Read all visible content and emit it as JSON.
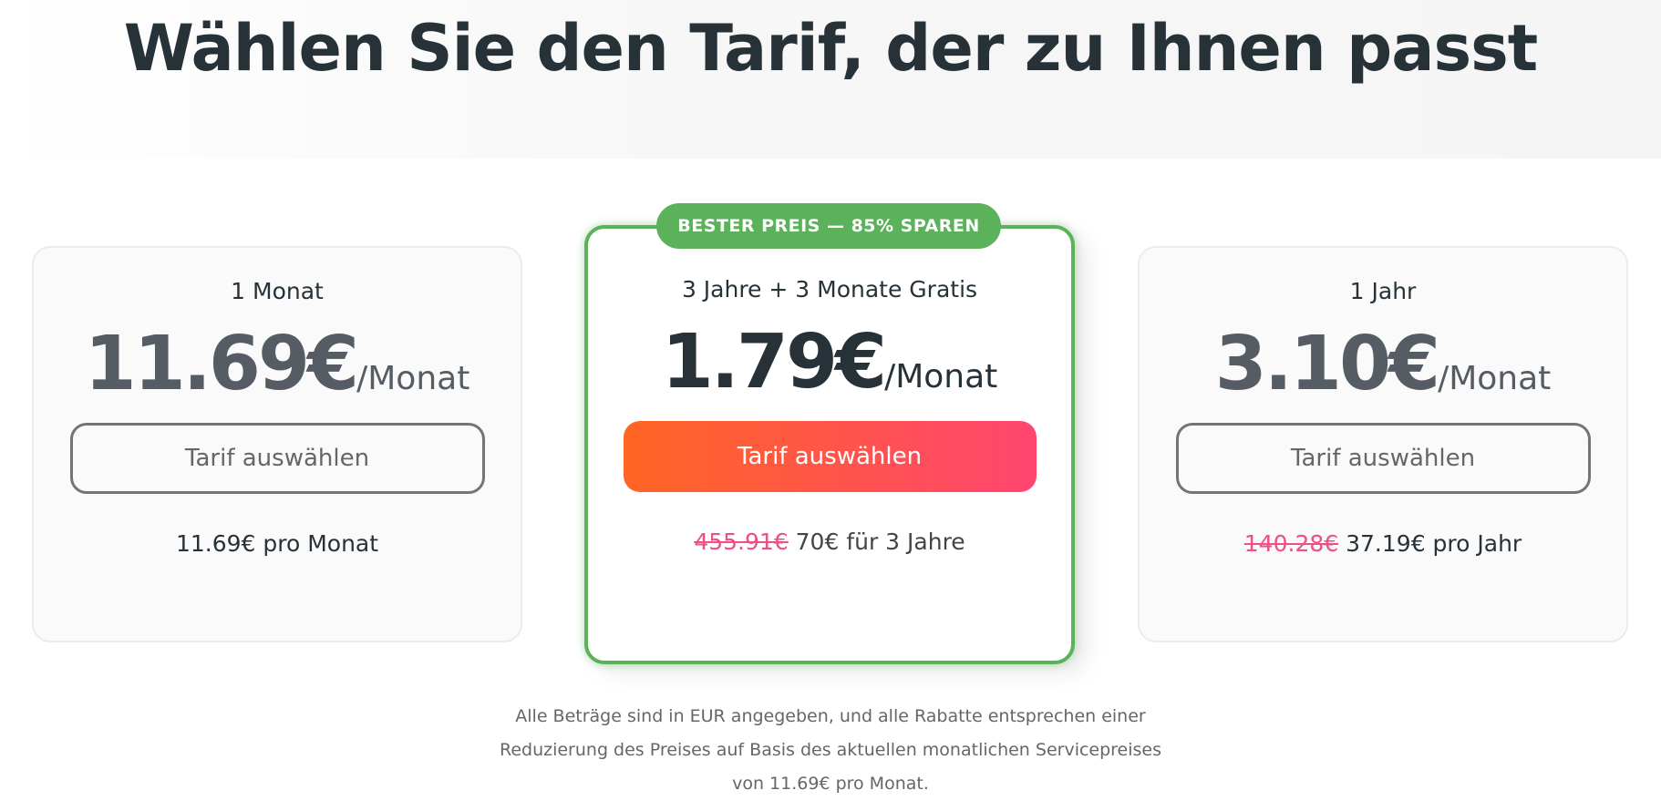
{
  "title": "Wählen Sie den Tarif, der zu Ihnen passt",
  "badge": "BESTER PREIS — 85% SPAREN",
  "plans": [
    {
      "name": "1 Monat",
      "price": "11.69€",
      "per": "/Monat",
      "button": "Tarif auswählen",
      "old_total": "",
      "total": "11.69€ pro Monat"
    },
    {
      "name": "3 Jahre + 3 Monate Gratis",
      "price": "1.79€",
      "per": "/Monat",
      "button": "Tarif auswählen",
      "old_total": "455.91€",
      "total": " 70€ für 3 Jahre"
    },
    {
      "name": "1 Jahr",
      "price": "3.10€",
      "per": "/Monat",
      "button": "Tarif auswählen",
      "old_total": "140.28€",
      "total": " 37.19€ pro Jahr"
    }
  ],
  "footnote": [
    "Alle Beträge sind in EUR angegeben, und alle Rabatte entsprechen einer",
    "Reduzierung des Preises auf Basis des aktuellen monatlichen Servicepreises",
    "von 11.69€ pro Monat."
  ],
  "colors": {
    "accent_green": "#5cb25a",
    "button_gradient_start": "#ff6523",
    "button_gradient_end": "#ff4570",
    "strike": "#ee4f86"
  }
}
